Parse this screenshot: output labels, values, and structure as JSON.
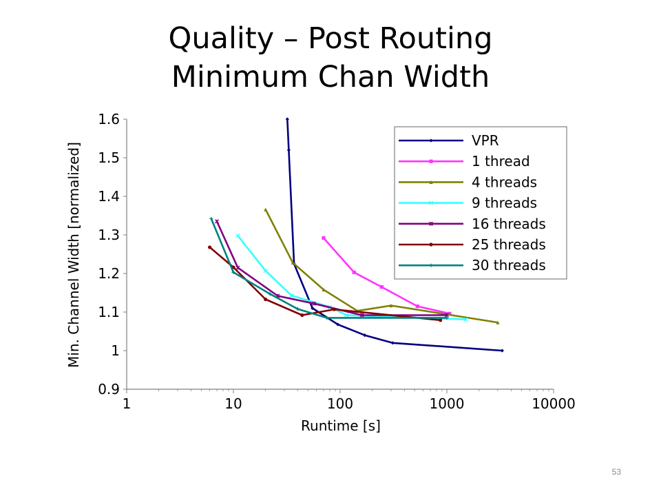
{
  "slide": {
    "title_line1": "Quality – Post Routing",
    "title_line2": "Minimum Chan Width",
    "page_number": "53"
  },
  "chart_data": {
    "type": "line",
    "xlabel": "Runtime [s]",
    "ylabel": "Min. Channel Width [normalized]",
    "xscale": "log",
    "xlim": [
      1,
      10000
    ],
    "ylim": [
      0.9,
      1.6
    ],
    "xticks": [
      {
        "value": 1,
        "label": "1"
      },
      {
        "value": 10,
        "label": "10"
      },
      {
        "value": 100,
        "label": "100"
      },
      {
        "value": 1000,
        "label": "1000"
      },
      {
        "value": 10000,
        "label": "10000"
      }
    ],
    "yticks": [
      {
        "value": 0.9,
        "label": "0.9"
      },
      {
        "value": 1.0,
        "label": "1"
      },
      {
        "value": 1.1,
        "label": "1.1"
      },
      {
        "value": 1.2,
        "label": "1.2"
      },
      {
        "value": 1.3,
        "label": "1.3"
      },
      {
        "value": 1.4,
        "label": "1.4"
      },
      {
        "value": 1.5,
        "label": "1.5"
      },
      {
        "value": 1.6,
        "label": "1.6"
      }
    ],
    "grid": false,
    "legend_position": "top-right",
    "series": [
      {
        "name": "VPR",
        "color": "#000080",
        "marker": "diamond",
        "points": [
          [
            32,
            1.6
          ],
          [
            33,
            1.52
          ],
          [
            37,
            1.225
          ],
          [
            55,
            1.11
          ],
          [
            95,
            1.068
          ],
          [
            170,
            1.04
          ],
          [
            310,
            1.02
          ],
          [
            3300,
            1.0
          ]
        ]
      },
      {
        "name": "1 thread",
        "color": "#ff33ff",
        "marker": "square",
        "points": [
          [
            70,
            1.292
          ],
          [
            135,
            1.203
          ],
          [
            245,
            1.165
          ],
          [
            530,
            1.115
          ],
          [
            1060,
            1.096
          ]
        ]
      },
      {
        "name": "4 threads",
        "color": "#808000",
        "marker": "triangle",
        "points": [
          [
            20,
            1.366
          ],
          [
            36,
            1.228
          ],
          [
            70,
            1.158
          ],
          [
            145,
            1.103
          ],
          [
            300,
            1.117
          ],
          [
            3000,
            1.073
          ]
        ]
      },
      {
        "name": "9 threads",
        "color": "#33ffff",
        "marker": "cross",
        "points": [
          [
            11,
            1.298
          ],
          [
            20,
            1.207
          ],
          [
            35,
            1.143
          ],
          [
            80,
            1.113
          ],
          [
            115,
            1.092
          ],
          [
            1500,
            1.081
          ]
        ]
      },
      {
        "name": "16 threads",
        "color": "#800080",
        "marker": "star",
        "points": [
          [
            7,
            1.335
          ],
          [
            11,
            1.215
          ],
          [
            26,
            1.142
          ],
          [
            57,
            1.122
          ],
          [
            160,
            1.092
          ],
          [
            1000,
            1.092
          ]
        ]
      },
      {
        "name": "25 threads",
        "color": "#800000",
        "marker": "circle",
        "points": [
          [
            6,
            1.268
          ],
          [
            10,
            1.216
          ],
          [
            20,
            1.133
          ],
          [
            44,
            1.092
          ],
          [
            88,
            1.107
          ],
          [
            870,
            1.079
          ]
        ]
      },
      {
        "name": "30 threads",
        "color": "#008080",
        "marker": "plus",
        "points": [
          [
            6.2,
            1.342
          ],
          [
            10,
            1.203
          ],
          [
            22,
            1.147
          ],
          [
            40,
            1.108
          ],
          [
            75,
            1.085
          ],
          [
            1000,
            1.085
          ]
        ]
      }
    ]
  }
}
